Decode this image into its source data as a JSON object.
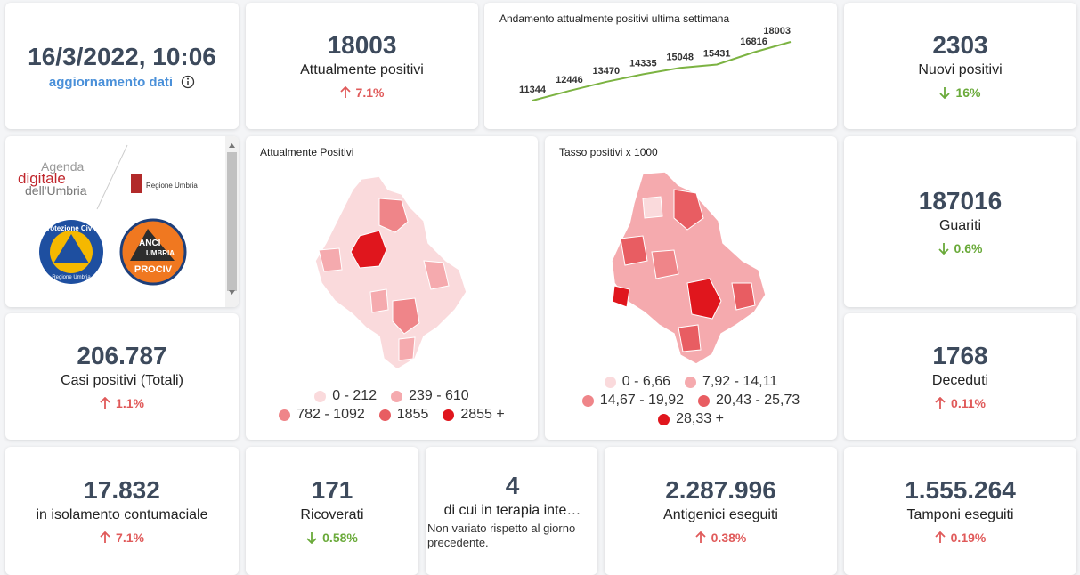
{
  "update": {
    "datetime": "16/3/2022, 10:06",
    "link": "aggiornamento dati"
  },
  "trend_chart": {
    "type": "line",
    "title": "Andamento attualmente positivi ultima settimana",
    "color": "#7cb342",
    "values": [
      11344,
      12446,
      13470,
      14335,
      15048,
      15431,
      16816,
      18003
    ]
  },
  "logos": {
    "agenda": [
      "Agenda",
      "digitale",
      "dell'Umbria"
    ],
    "regione": "Regione Umbria",
    "protezione": [
      "Protezione Civile",
      "Regione Umbria"
    ],
    "anci": [
      "ANCI",
      "UMBRIA",
      "PROCIV"
    ]
  },
  "kpis": [
    {
      "value": "18003",
      "label": "Attualmente positivi",
      "change": "7.1%",
      "trend": "up"
    },
    {
      "value": "2303",
      "label": "Nuovi positivi",
      "change": "16%",
      "trend": "down"
    },
    {
      "value": "187016",
      "label": "Guariti",
      "change": "0.6%",
      "trend": "down"
    },
    {
      "value": "206.787",
      "label": "Casi positivi (Totali)",
      "change": "1.1%",
      "trend": "up"
    },
    {
      "value": "1768",
      "label": "Deceduti",
      "change": "0.11%",
      "trend": "up"
    },
    {
      "value": "17.832",
      "label": "in isolamento contumaciale",
      "change": "7.1%",
      "trend": "up"
    },
    {
      "value": "171",
      "label": "Ricoverati",
      "change": "0.58%",
      "trend": "down"
    },
    {
      "value": "4",
      "label": "di cui in terapia inte…",
      "note": "Non variato rispetto al giorno precedente."
    },
    {
      "value": "2.287.996",
      "label": "Antigenici eseguiti",
      "change": "0.38%",
      "trend": "up"
    },
    {
      "value": "1.555.264",
      "label": "Tamponi eseguiti",
      "change": "0.19%",
      "trend": "up"
    }
  ],
  "maps": [
    {
      "title": "Attualmente Positivi",
      "legend": [
        {
          "label": "0 - 212",
          "color": "#fadadc"
        },
        {
          "label": "239 - 610",
          "color": "#f5aaae"
        },
        {
          "label": "782 - 1092",
          "color": "#ef8589"
        },
        {
          "label": "1855",
          "color": "#e85d62"
        },
        {
          "label": "2855 +",
          "color": "#e0161d"
        }
      ]
    },
    {
      "title": "Tasso positivi x 1000",
      "legend": [
        {
          "label": "0 - 6,66",
          "color": "#fadadc"
        },
        {
          "label": "7,92 - 14,11",
          "color": "#f5aaae"
        },
        {
          "label": "14,67 - 19,92",
          "color": "#ef8589"
        },
        {
          "label": "20,43 - 25,73",
          "color": "#e85d62"
        },
        {
          "label": "28,33 +",
          "color": "#e0161d"
        }
      ]
    }
  ]
}
